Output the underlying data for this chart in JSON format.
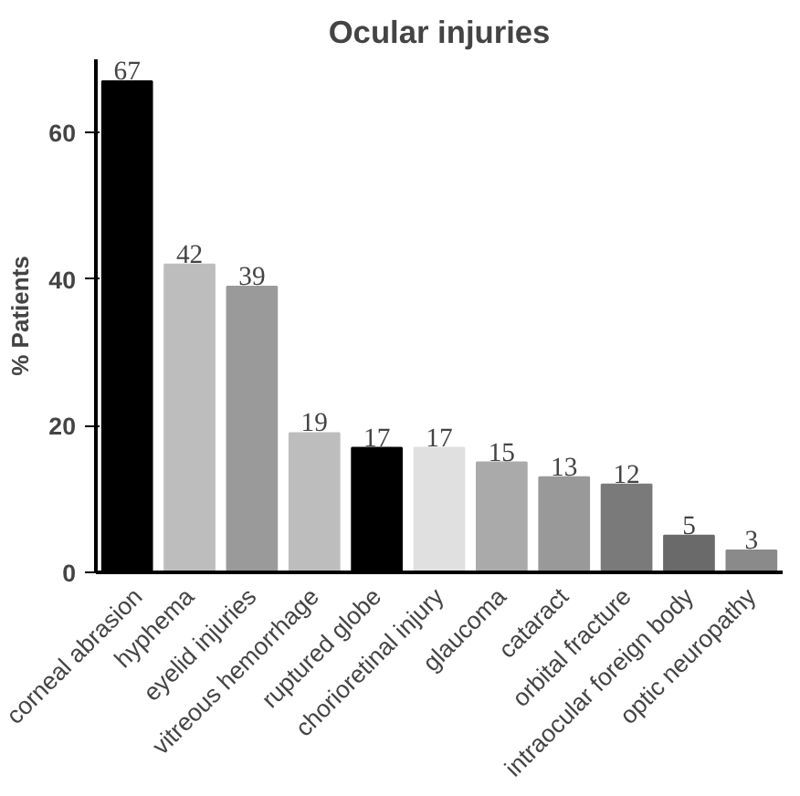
{
  "chart_data": {
    "type": "bar",
    "title": "Ocular injuries",
    "ylabel": "% Patients",
    "categories": [
      "corneal abrasion",
      "hyphema",
      "eyelid injuries",
      "vitreous hemorrhage",
      "ruptured globe",
      "chorioretinal injury",
      "glaucoma",
      "cataract",
      "orbital fracture",
      "intraocular foreign body",
      "optic neuropathy"
    ],
    "values": [
      67,
      42,
      39,
      19,
      17,
      17,
      15,
      13,
      12,
      5,
      3
    ],
    "colors": [
      "#000000",
      "#bdbdbd",
      "#9a9a9a",
      "#bdbdbd",
      "#000000",
      "#e0e0e0",
      "#aaaaaa",
      "#999999",
      "#7a7a7a",
      "#6a6a6a",
      "#8a8a8a"
    ],
    "ylim": [
      0,
      70
    ],
    "yticks": [
      0,
      20,
      40,
      60
    ],
    "data_labels": true,
    "grid": false
  }
}
